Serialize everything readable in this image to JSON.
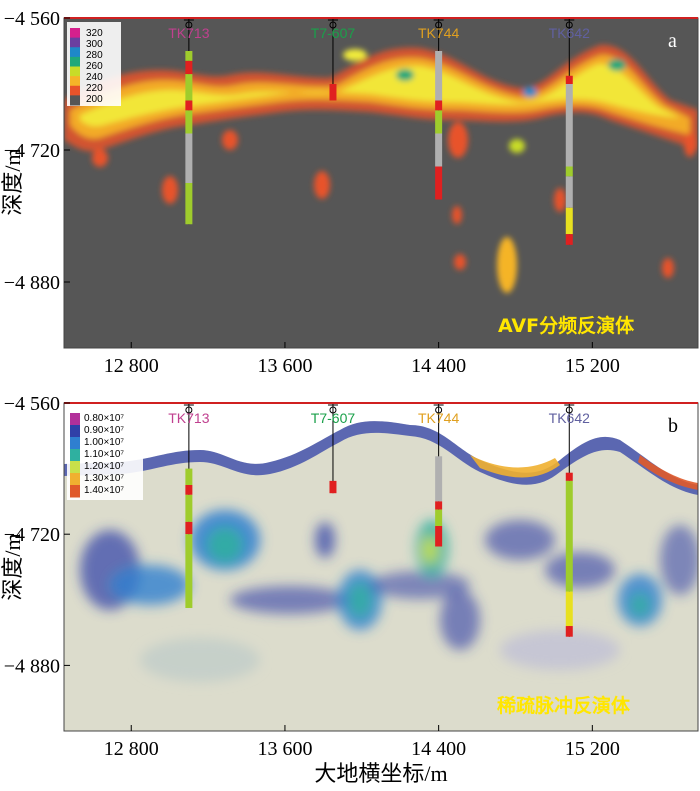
{
  "chart_data": [
    {
      "type": "heatmap",
      "panel_letter": "a",
      "method_label": "AVF分频反演体",
      "ylabel": "深度/m",
      "xlabel": "",
      "x_ticks": [
        {
          "value": 12800,
          "label": "12 800"
        },
        {
          "value": 13600,
          "label": "13 600"
        },
        {
          "value": 14400,
          "label": "14 400"
        },
        {
          "value": 15200,
          "label": "15 200"
        }
      ],
      "y_ticks": [
        {
          "value": -4560,
          "label": "−4 560"
        },
        {
          "value": -4720,
          "label": "−4 720"
        },
        {
          "value": -4880,
          "label": "−4 880"
        }
      ],
      "xlim": [
        12450,
        15750
      ],
      "ylim": [
        -4560,
        -4960
      ],
      "colorbar": {
        "labels": [
          "320",
          "300",
          "280",
          "260",
          "240",
          "220",
          "200"
        ],
        "colors": [
          "#d6208d",
          "#6a3fa0",
          "#1e88c8",
          "#1fa87a",
          "#c8dc28",
          "#f5b428",
          "#e8532a",
          "#565656"
        ]
      },
      "background_color": "#565656",
      "wells": [
        {
          "name": "TK713",
          "x": 13100,
          "top": -4560,
          "bottom": -4810,
          "color": "#c0408f",
          "segments": [
            {
              "from": -4600,
              "to": -4612,
              "color": "#9fcc2c"
            },
            {
              "from": -4612,
              "to": -4628,
              "color": "#e02020"
            },
            {
              "from": -4628,
              "to": -4660,
              "color": "#9fcc2c"
            },
            {
              "from": -4660,
              "to": -4672,
              "color": "#e02020"
            },
            {
              "from": -4672,
              "to": -4700,
              "color": "#9fcc2c"
            },
            {
              "from": -4700,
              "to": -4760,
              "color": "#b0b0b0"
            },
            {
              "from": -4760,
              "to": -4810,
              "color": "#9fcc2c"
            }
          ]
        },
        {
          "name": "T7-607",
          "x": 13850,
          "top": -4560,
          "bottom": -4660,
          "color": "#1aa04a",
          "segments": [
            {
              "from": -4640,
              "to": -4660,
              "color": "#e02020"
            }
          ]
        },
        {
          "name": "TK744",
          "x": 14400,
          "top": -4560,
          "bottom": -4780,
          "color": "#e0a020",
          "segments": [
            {
              "from": -4600,
              "to": -4660,
              "color": "#b0b0b0"
            },
            {
              "from": -4660,
              "to": -4672,
              "color": "#e02020"
            },
            {
              "from": -4672,
              "to": -4700,
              "color": "#9fcc2c"
            },
            {
              "from": -4700,
              "to": -4740,
              "color": "#b0b0b0"
            },
            {
              "from": -4740,
              "to": -4780,
              "color": "#e02020"
            }
          ]
        },
        {
          "name": "TK642",
          "x": 15080,
          "top": -4560,
          "bottom": -4835,
          "color": "#6060a0",
          "segments": [
            {
              "from": -4630,
              "to": -4640,
              "color": "#e02020"
            },
            {
              "from": -4640,
              "to": -4740,
              "color": "#b0b0b0"
            },
            {
              "from": -4740,
              "to": -4752,
              "color": "#9fcc2c"
            },
            {
              "from": -4752,
              "to": -4790,
              "color": "#b0b0b0"
            },
            {
              "from": -4790,
              "to": -4822,
              "color": "#e8e020"
            },
            {
              "from": -4822,
              "to": -4835,
              "color": "#e02020"
            }
          ]
        }
      ]
    },
    {
      "type": "heatmap",
      "panel_letter": "b",
      "method_label": "稀疏脉冲反演体",
      "ylabel": "深度/m",
      "xlabel": "大地横坐标/m",
      "x_ticks": [
        {
          "value": 12800,
          "label": "12 800"
        },
        {
          "value": 13600,
          "label": "13 600"
        },
        {
          "value": 14400,
          "label": "14 400"
        },
        {
          "value": 15200,
          "label": "15 200"
        }
      ],
      "y_ticks": [
        {
          "value": -4560,
          "label": "−4 560"
        },
        {
          "value": -4720,
          "label": "−4 720"
        },
        {
          "value": -4880,
          "label": "−4 880"
        }
      ],
      "xlim": [
        12450,
        15750
      ],
      "ylim": [
        -4560,
        -4960
      ],
      "colorbar": {
        "labels": [
          "0.80×10⁷",
          "0.90×10⁷",
          "1.00×10⁷",
          "1.10×10⁷",
          "1.20×10⁷",
          "1.30×10⁷",
          "1.40×10⁷"
        ],
        "colors": [
          "#b2309a",
          "#3040a8",
          "#2f7fd0",
          "#2fb0a0",
          "#c8e04a",
          "#f0b030",
          "#e05a2a"
        ]
      },
      "background_color": "#dcdccc",
      "wells": [
        {
          "name": "TK713",
          "x": 13100,
          "top": -4560,
          "bottom": -4810,
          "color": "#c0408f",
          "segments": [
            {
              "from": -4640,
              "to": -4660,
              "color": "#9fcc2c"
            },
            {
              "from": -4660,
              "to": -4672,
              "color": "#e02020"
            },
            {
              "from": -4672,
              "to": -4705,
              "color": "#9fcc2c"
            },
            {
              "from": -4705,
              "to": -4720,
              "color": "#e02020"
            },
            {
              "from": -4720,
              "to": -4810,
              "color": "#9fcc2c"
            }
          ]
        },
        {
          "name": "T7-607",
          "x": 13850,
          "top": -4560,
          "bottom": -4670,
          "color": "#1aa04a",
          "segments": [
            {
              "from": -4655,
              "to": -4670,
              "color": "#e02020"
            }
          ]
        },
        {
          "name": "TK744",
          "x": 14400,
          "top": -4560,
          "bottom": -4735,
          "color": "#e0a020",
          "segments": [
            {
              "from": -4625,
              "to": -4680,
              "color": "#b0b0b0"
            },
            {
              "from": -4680,
              "to": -4690,
              "color": "#e02020"
            },
            {
              "from": -4690,
              "to": -4710,
              "color": "#9fcc2c"
            },
            {
              "from": -4710,
              "to": -4735,
              "color": "#e02020"
            }
          ]
        },
        {
          "name": "TK642",
          "x": 15080,
          "top": -4560,
          "bottom": -4845,
          "color": "#6060a0",
          "segments": [
            {
              "from": -4645,
              "to": -4655,
              "color": "#e02020"
            },
            {
              "from": -4655,
              "to": -4790,
              "color": "#9fcc2c"
            },
            {
              "from": -4790,
              "to": -4832,
              "color": "#e8e020"
            },
            {
              "from": -4832,
              "to": -4845,
              "color": "#e02020"
            }
          ]
        }
      ]
    }
  ]
}
